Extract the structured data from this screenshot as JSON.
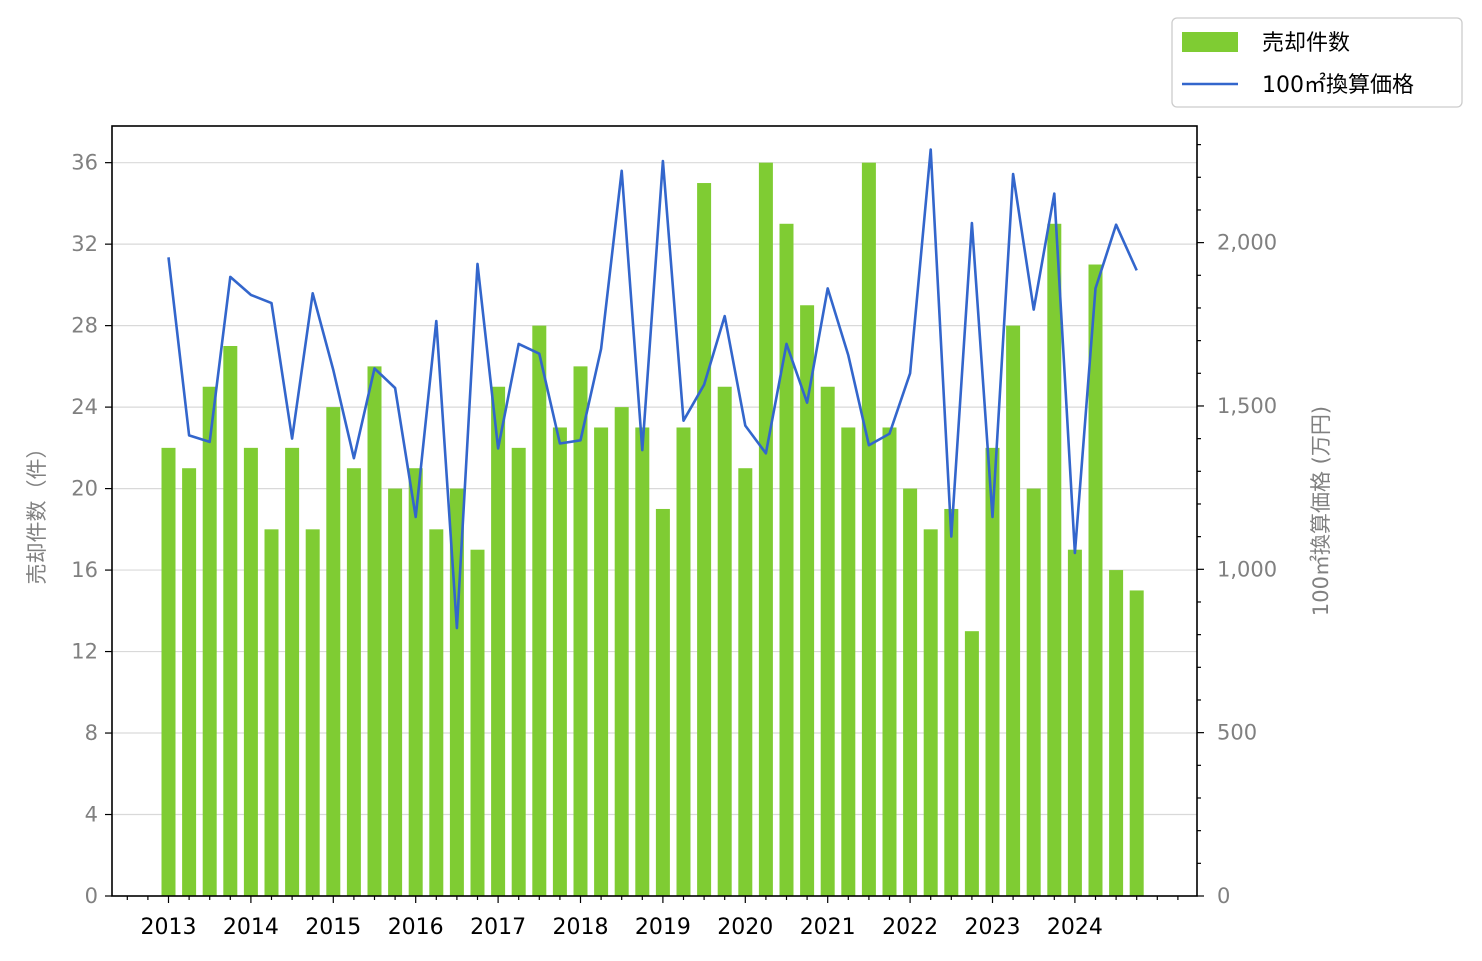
{
  "chart_data": {
    "type": "bar+line",
    "title": "",
    "ylabel_left": "売却件数（件）",
    "ylabel_right": "100㎡換算価格 (万円)",
    "xlabel": "",
    "x_tick_labels": [
      "2013",
      "2014",
      "2015",
      "2016",
      "2017",
      "2018",
      "2019",
      "2020",
      "2021",
      "2022",
      "2023",
      "2024"
    ],
    "y_left": {
      "lim": [
        0,
        37.8
      ],
      "ticks": [
        0,
        4,
        8,
        12,
        16,
        20,
        24,
        28,
        32,
        36
      ],
      "tick_labels": [
        "0",
        "4",
        "8",
        "12",
        "16",
        "20",
        "24",
        "28",
        "32",
        "36"
      ]
    },
    "y_right": {
      "lim": [
        0,
        2357
      ],
      "ticks": [
        0,
        500,
        1000,
        1500,
        2000
      ],
      "tick_labels": [
        "0",
        "500",
        "1,000",
        "1,500",
        "2,000"
      ]
    },
    "grid": "horizontal",
    "legend_position": "top-right",
    "series": [
      {
        "name": "売却件数",
        "kind": "bar",
        "axis": "left",
        "color": "#7fcc33",
        "values": [
          22,
          21,
          25,
          27,
          22,
          18,
          22,
          18,
          24,
          21,
          26,
          20,
          21,
          18,
          20,
          17,
          25,
          22,
          28,
          23,
          26,
          23,
          24,
          23,
          19,
          23,
          35,
          25,
          21,
          36,
          33,
          29,
          25,
          23,
          36,
          23,
          20,
          18,
          19,
          13,
          22,
          28,
          20,
          33,
          17,
          31,
          16,
          15
        ]
      },
      {
        "name": "100㎡換算価格",
        "kind": "line",
        "axis": "right",
        "color": "#3366cc",
        "values": [
          1955,
          1410,
          1390,
          1895,
          1840,
          1815,
          1400,
          1845,
          1610,
          1340,
          1615,
          1555,
          1160,
          1760,
          820,
          1935,
          1370,
          1690,
          1660,
          1385,
          1395,
          1675,
          2220,
          1365,
          2250,
          1455,
          1565,
          1775,
          1440,
          1355,
          1690,
          1510,
          1860,
          1655,
          1380,
          1415,
          1600,
          2285,
          1100,
          2060,
          1160,
          2210,
          1795,
          2150,
          1050,
          1860,
          2055,
          1915
        ]
      }
    ]
  }
}
